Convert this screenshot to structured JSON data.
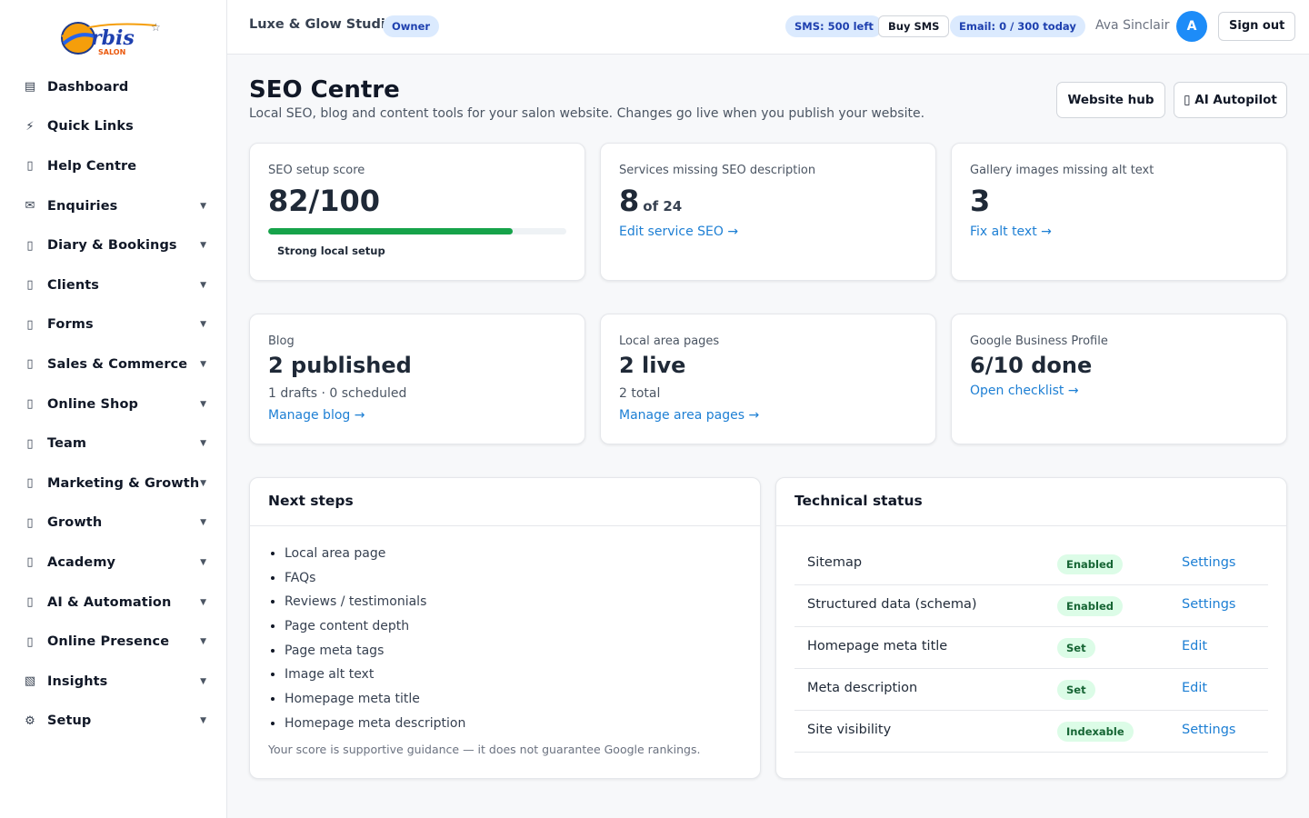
{
  "brand": {
    "logo_text": "rbis",
    "logo_sub": "SALON"
  },
  "sidebar": {
    "items": [
      {
        "label": "Dashboard",
        "icon": "▤",
        "has_caret": false
      },
      {
        "label": "Quick Links",
        "icon": "⚡",
        "has_caret": false
      },
      {
        "label": "Help Centre",
        "icon": "▯",
        "has_caret": false
      },
      {
        "label": "Enquiries",
        "icon": "✉",
        "has_caret": true
      },
      {
        "label": "Diary & Bookings",
        "icon": "▯",
        "has_caret": true
      },
      {
        "label": "Clients",
        "icon": "▯",
        "has_caret": true
      },
      {
        "label": "Forms",
        "icon": "▯",
        "has_caret": true
      },
      {
        "label": "Sales & Commerce",
        "icon": "▯",
        "has_caret": true
      },
      {
        "label": "Online Shop",
        "icon": "▯",
        "has_caret": true
      },
      {
        "label": "Team",
        "icon": "▯",
        "has_caret": true
      },
      {
        "label": "Marketing & Growth",
        "icon": "▯",
        "has_caret": true
      },
      {
        "label": "Growth",
        "icon": "▯",
        "has_caret": true
      },
      {
        "label": "Academy",
        "icon": "▯",
        "has_caret": true
      },
      {
        "label": "AI & Automation",
        "icon": "▯",
        "has_caret": true
      },
      {
        "label": "Online Presence",
        "icon": "▯",
        "has_caret": true
      },
      {
        "label": "Insights",
        "icon": "▧",
        "has_caret": true
      },
      {
        "label": "Setup",
        "icon": "⚙",
        "has_caret": true
      }
    ],
    "caret": "▼"
  },
  "topbar": {
    "studio_name": "Luxe & Glow Studio",
    "role_badge": "Owner",
    "sms_left": "SMS: 500 left",
    "buy_sms": "Buy SMS",
    "email_quota": "Email: 0 / 300 today",
    "user_name": "Ava Sinclair",
    "avatar_initial": "A",
    "sign_out": "Sign out"
  },
  "header": {
    "title": "SEO Centre",
    "subtitle": "Local SEO, blog and content tools for your salon website. Changes go live when you publish your website.",
    "website_hub": "Website hub",
    "ai_autopilot": "▯ AI Autopilot"
  },
  "cards": {
    "score": {
      "label": "SEO setup score",
      "value": "82/100",
      "progress": 0.82,
      "caption": "Strong local setup"
    },
    "services": {
      "label": "Services missing SEO description",
      "value": "8",
      "suffix": "of 24",
      "link": "Edit service SEO →"
    },
    "gallery": {
      "label": "Gallery images missing alt text",
      "value": "3",
      "link": "Fix alt text →"
    },
    "blog": {
      "label": "Blog",
      "value": "2 published",
      "meta": "1 drafts · 0 scheduled",
      "link": "Manage blog →"
    },
    "area": {
      "label": "Local area pages",
      "value": "2 live",
      "meta": "2 total",
      "link": "Manage area pages →"
    },
    "gbp": {
      "label": "Google Business Profile",
      "value": "6/10 done",
      "link": "Open checklist →"
    }
  },
  "next_steps": {
    "title": "Next steps",
    "items": [
      "Local area page",
      "FAQs",
      "Reviews / testimonials",
      "Page content depth",
      "Page meta tags",
      "Image alt text",
      "Homepage meta title",
      "Homepage meta description"
    ],
    "disclaimer": "Your score is supportive guidance — it does not guarantee Google rankings."
  },
  "technical": {
    "title": "Technical status",
    "rows": [
      {
        "name": "Sitemap",
        "status": "Enabled",
        "action": "Settings"
      },
      {
        "name": "Structured data (schema)",
        "status": "Enabled",
        "action": "Settings"
      },
      {
        "name": "Homepage meta title",
        "status": "Set",
        "action": "Edit"
      },
      {
        "name": "Meta description",
        "status": "Set",
        "action": "Edit"
      },
      {
        "name": "Site visibility",
        "status": "Indexable",
        "action": "Settings"
      }
    ]
  },
  "colors": {
    "accent": "#1d7fd4",
    "success": "#16a34a",
    "badge_bg": "#dbeafe"
  }
}
